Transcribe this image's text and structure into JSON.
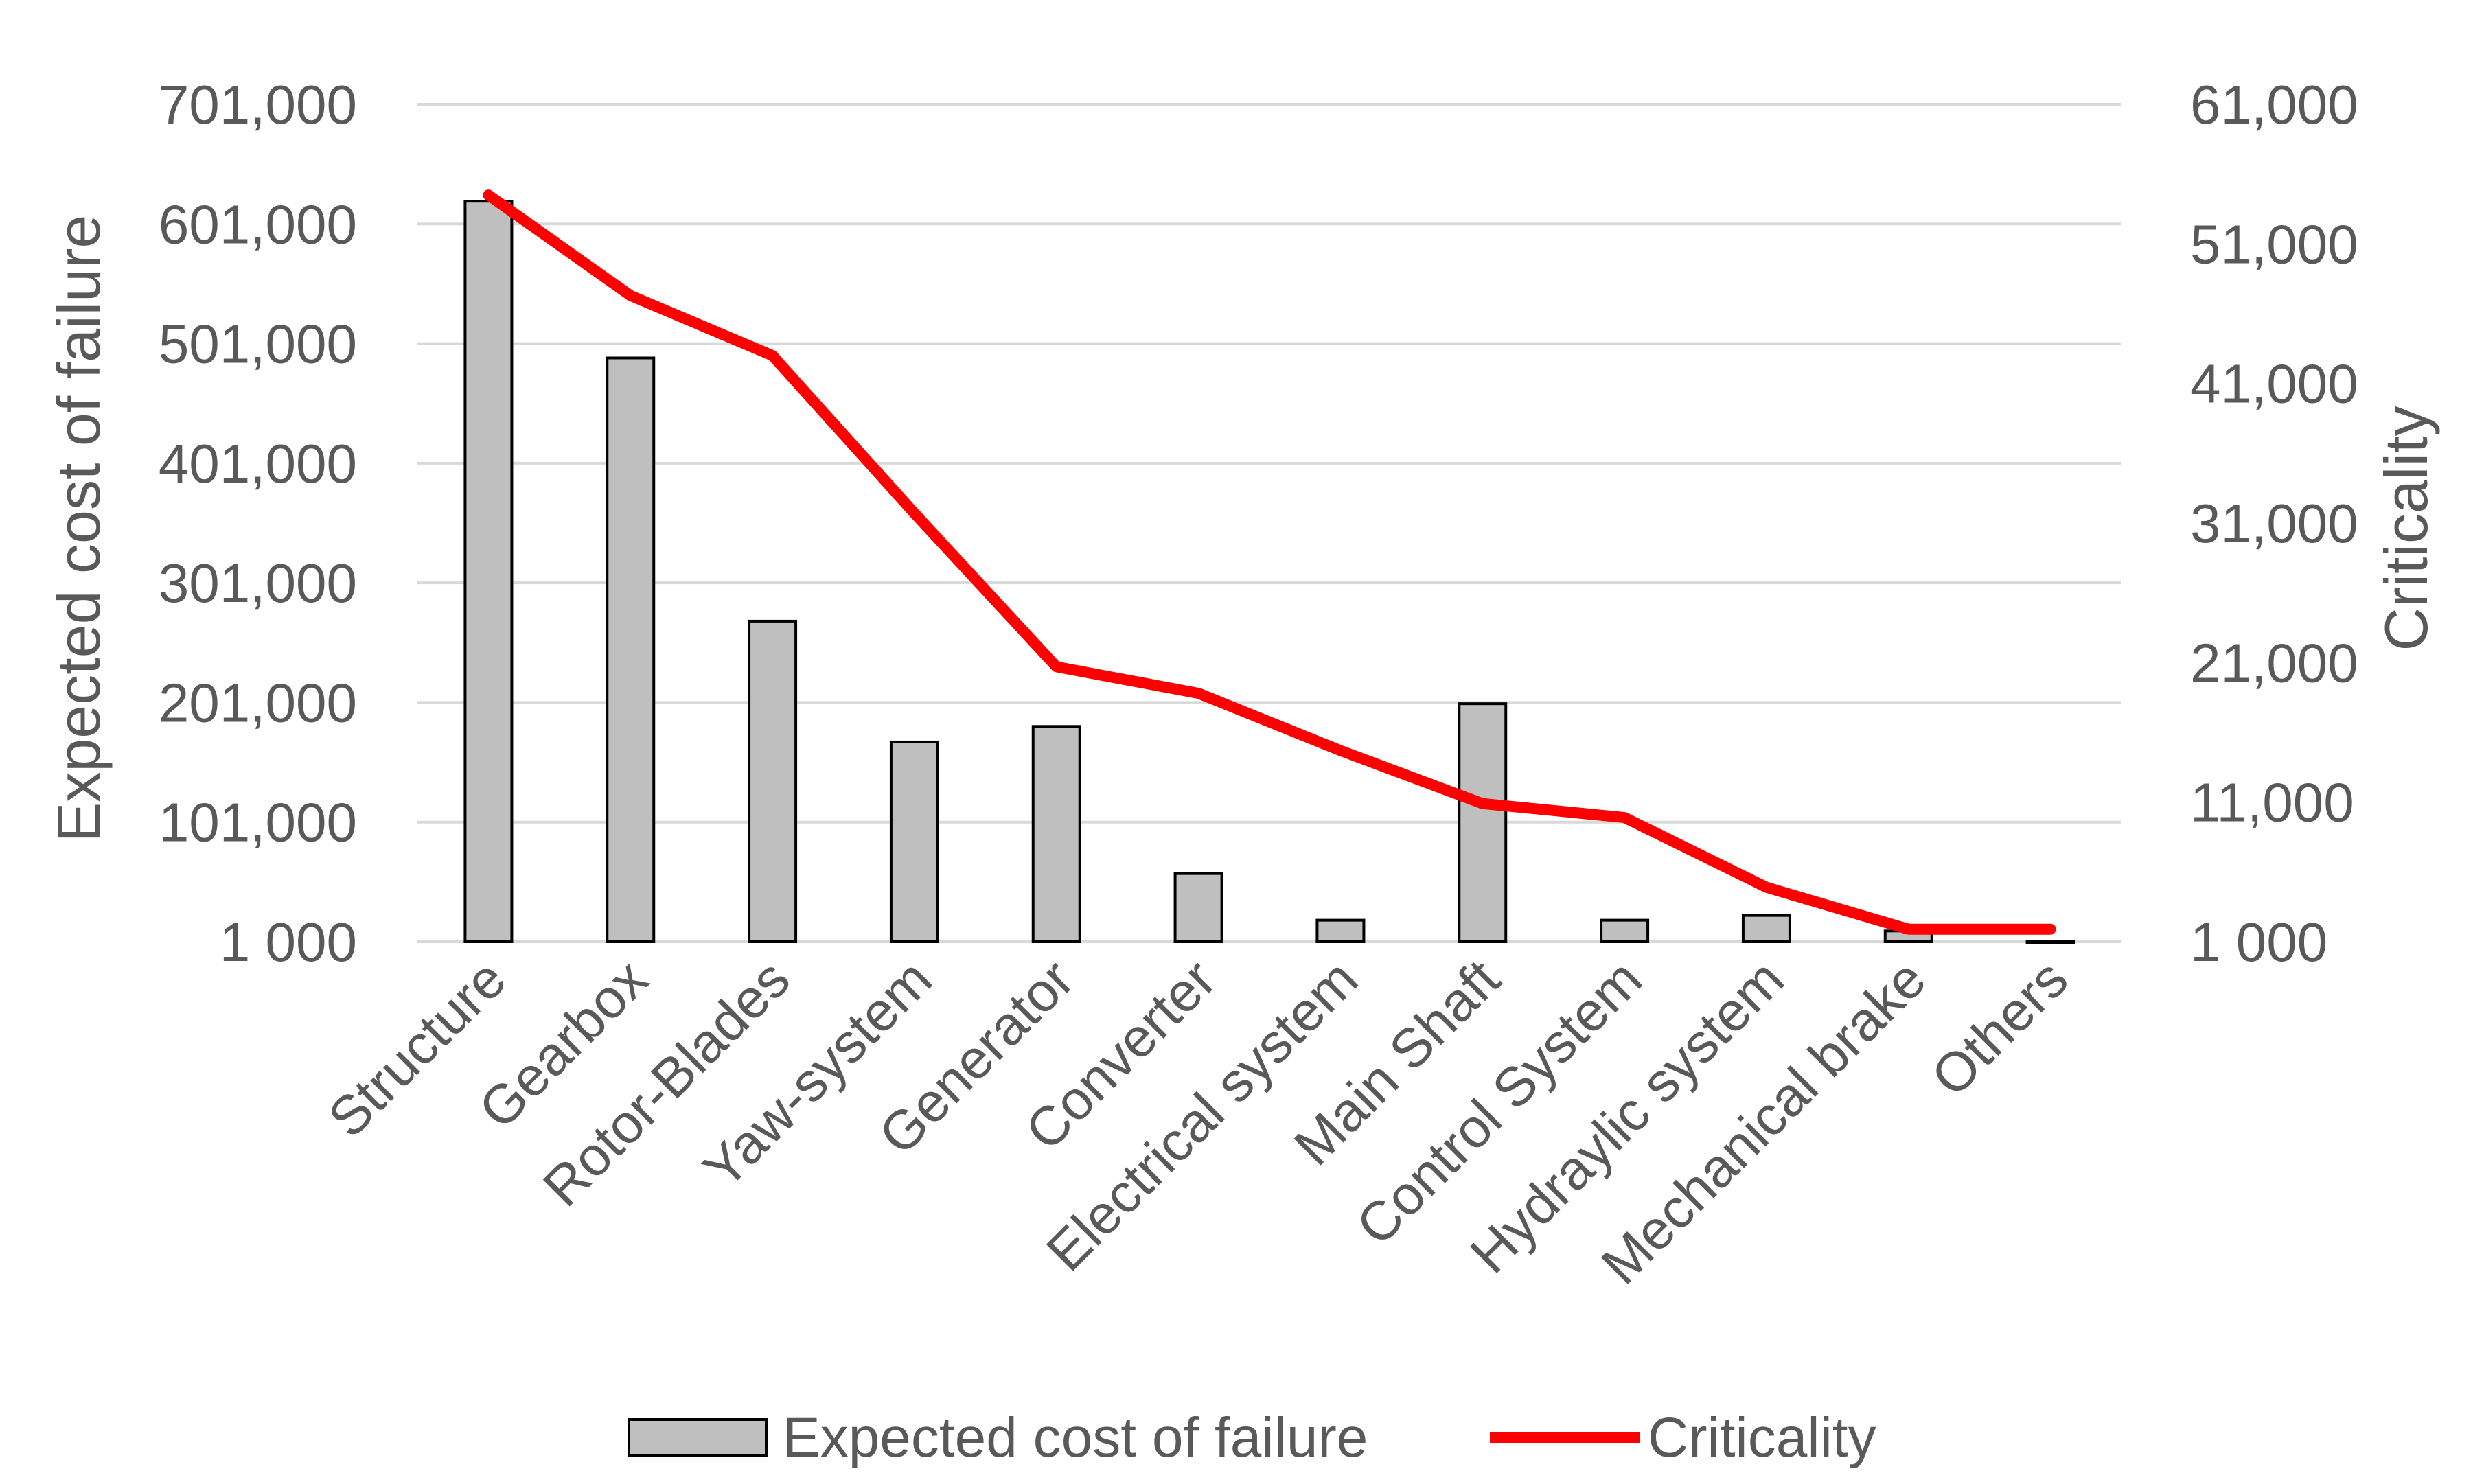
{
  "chart_data": {
    "type": "bar+line",
    "categories": [
      "Structure",
      "Gearbox",
      "Rotor-Blades",
      "Yaw-system",
      "Generator",
      "Converter",
      "Electrical system",
      "Main Shaft",
      "Control System",
      "Hydraylic system",
      "Mechanical brake",
      "Others"
    ],
    "series": [
      {
        "name": "Expected cost of failure",
        "type": "bar",
        "axis": "left",
        "color": "#bfbfbf",
        "values": [
          620000,
          489000,
          269000,
          168000,
          181000,
          58000,
          19000,
          200000,
          19000,
          23000,
          10000,
          1000
        ]
      },
      {
        "name": "Criticality",
        "type": "line",
        "axis": "right",
        "color": "#ff0000",
        "values": [
          54500,
          47300,
          43000,
          31700,
          20700,
          18800,
          14700,
          10900,
          9900,
          4900,
          1900,
          1900
        ]
      }
    ],
    "y_left": {
      "label": "Expected cost of failure",
      "range": [
        1000,
        701000
      ],
      "ticks": [
        "1 000",
        "101,000",
        "201,000",
        "301,000",
        "401,000",
        "501,000",
        "601,000",
        "701,000"
      ]
    },
    "y_right": {
      "label": "Criticality",
      "range": [
        1000,
        61000
      ],
      "ticks": [
        "1 000",
        "11,000",
        "21,000",
        "31,000",
        "41,000",
        "51,000",
        "61,000"
      ]
    },
    "grid": true,
    "legend_position": "bottom"
  }
}
